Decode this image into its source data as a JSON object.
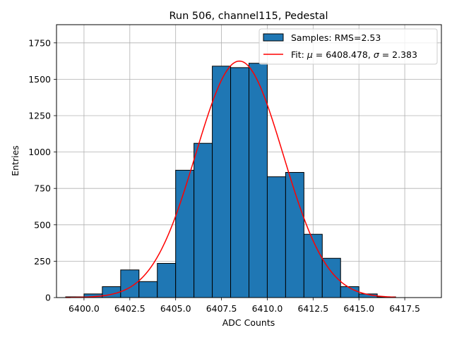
{
  "chart_data": {
    "type": "bar",
    "title": "Run 506, channel115, Pedestal",
    "xlabel": "ADC Counts",
    "ylabel": "Entries",
    "xlim": [
      6398.5,
      6419.5
    ],
    "ylim": [
      0,
      1875
    ],
    "grid": true,
    "xticks": [
      6400.0,
      6402.5,
      6405.0,
      6407.5,
      6410.0,
      6412.5,
      6415.0,
      6417.5
    ],
    "xtick_labels": [
      "6400.0",
      "6402.5",
      "6405.0",
      "6407.5",
      "6410.0",
      "6412.5",
      "6415.0",
      "6417.5"
    ],
    "yticks": [
      0,
      250,
      500,
      750,
      1000,
      1250,
      1500,
      1750
    ],
    "ytick_labels": [
      "0",
      "250",
      "500",
      "750",
      "1000",
      "1250",
      "1500",
      "1750"
    ],
    "bin_edges": [
      6399,
      6400,
      6401,
      6402,
      6403,
      6404,
      6405,
      6406,
      6407,
      6408,
      6409,
      6410,
      6411,
      6412,
      6413,
      6414,
      6415,
      6416,
      6417,
      6418,
      6419
    ],
    "values": [
      5,
      25,
      75,
      190,
      110,
      235,
      875,
      1060,
      1590,
      1580,
      1610,
      830,
      860,
      435,
      270,
      75,
      25,
      5,
      0,
      0
    ],
    "series": [
      {
        "name": "Samples: RMS=2.53",
        "kind": "histogram",
        "color": "#1f77b4",
        "edgecolor": "#000000"
      },
      {
        "name": "Fit: μ = 6408.478, σ = 2.383",
        "kind": "gaussian-fit",
        "color": "#ff0000",
        "mu": 6408.478,
        "sigma": 2.383,
        "amplitude": 1625,
        "x_range": [
          6399,
          6417
        ]
      }
    ],
    "legend": {
      "position": "top-right",
      "samples_label": "Samples: RMS=2.53",
      "fit_prefix": "Fit: ",
      "fit_mu_symbol": "μ",
      "fit_mu_value": " = 6408.478, ",
      "fit_sigma_symbol": "σ",
      "fit_sigma_value": " = 2.383"
    }
  }
}
